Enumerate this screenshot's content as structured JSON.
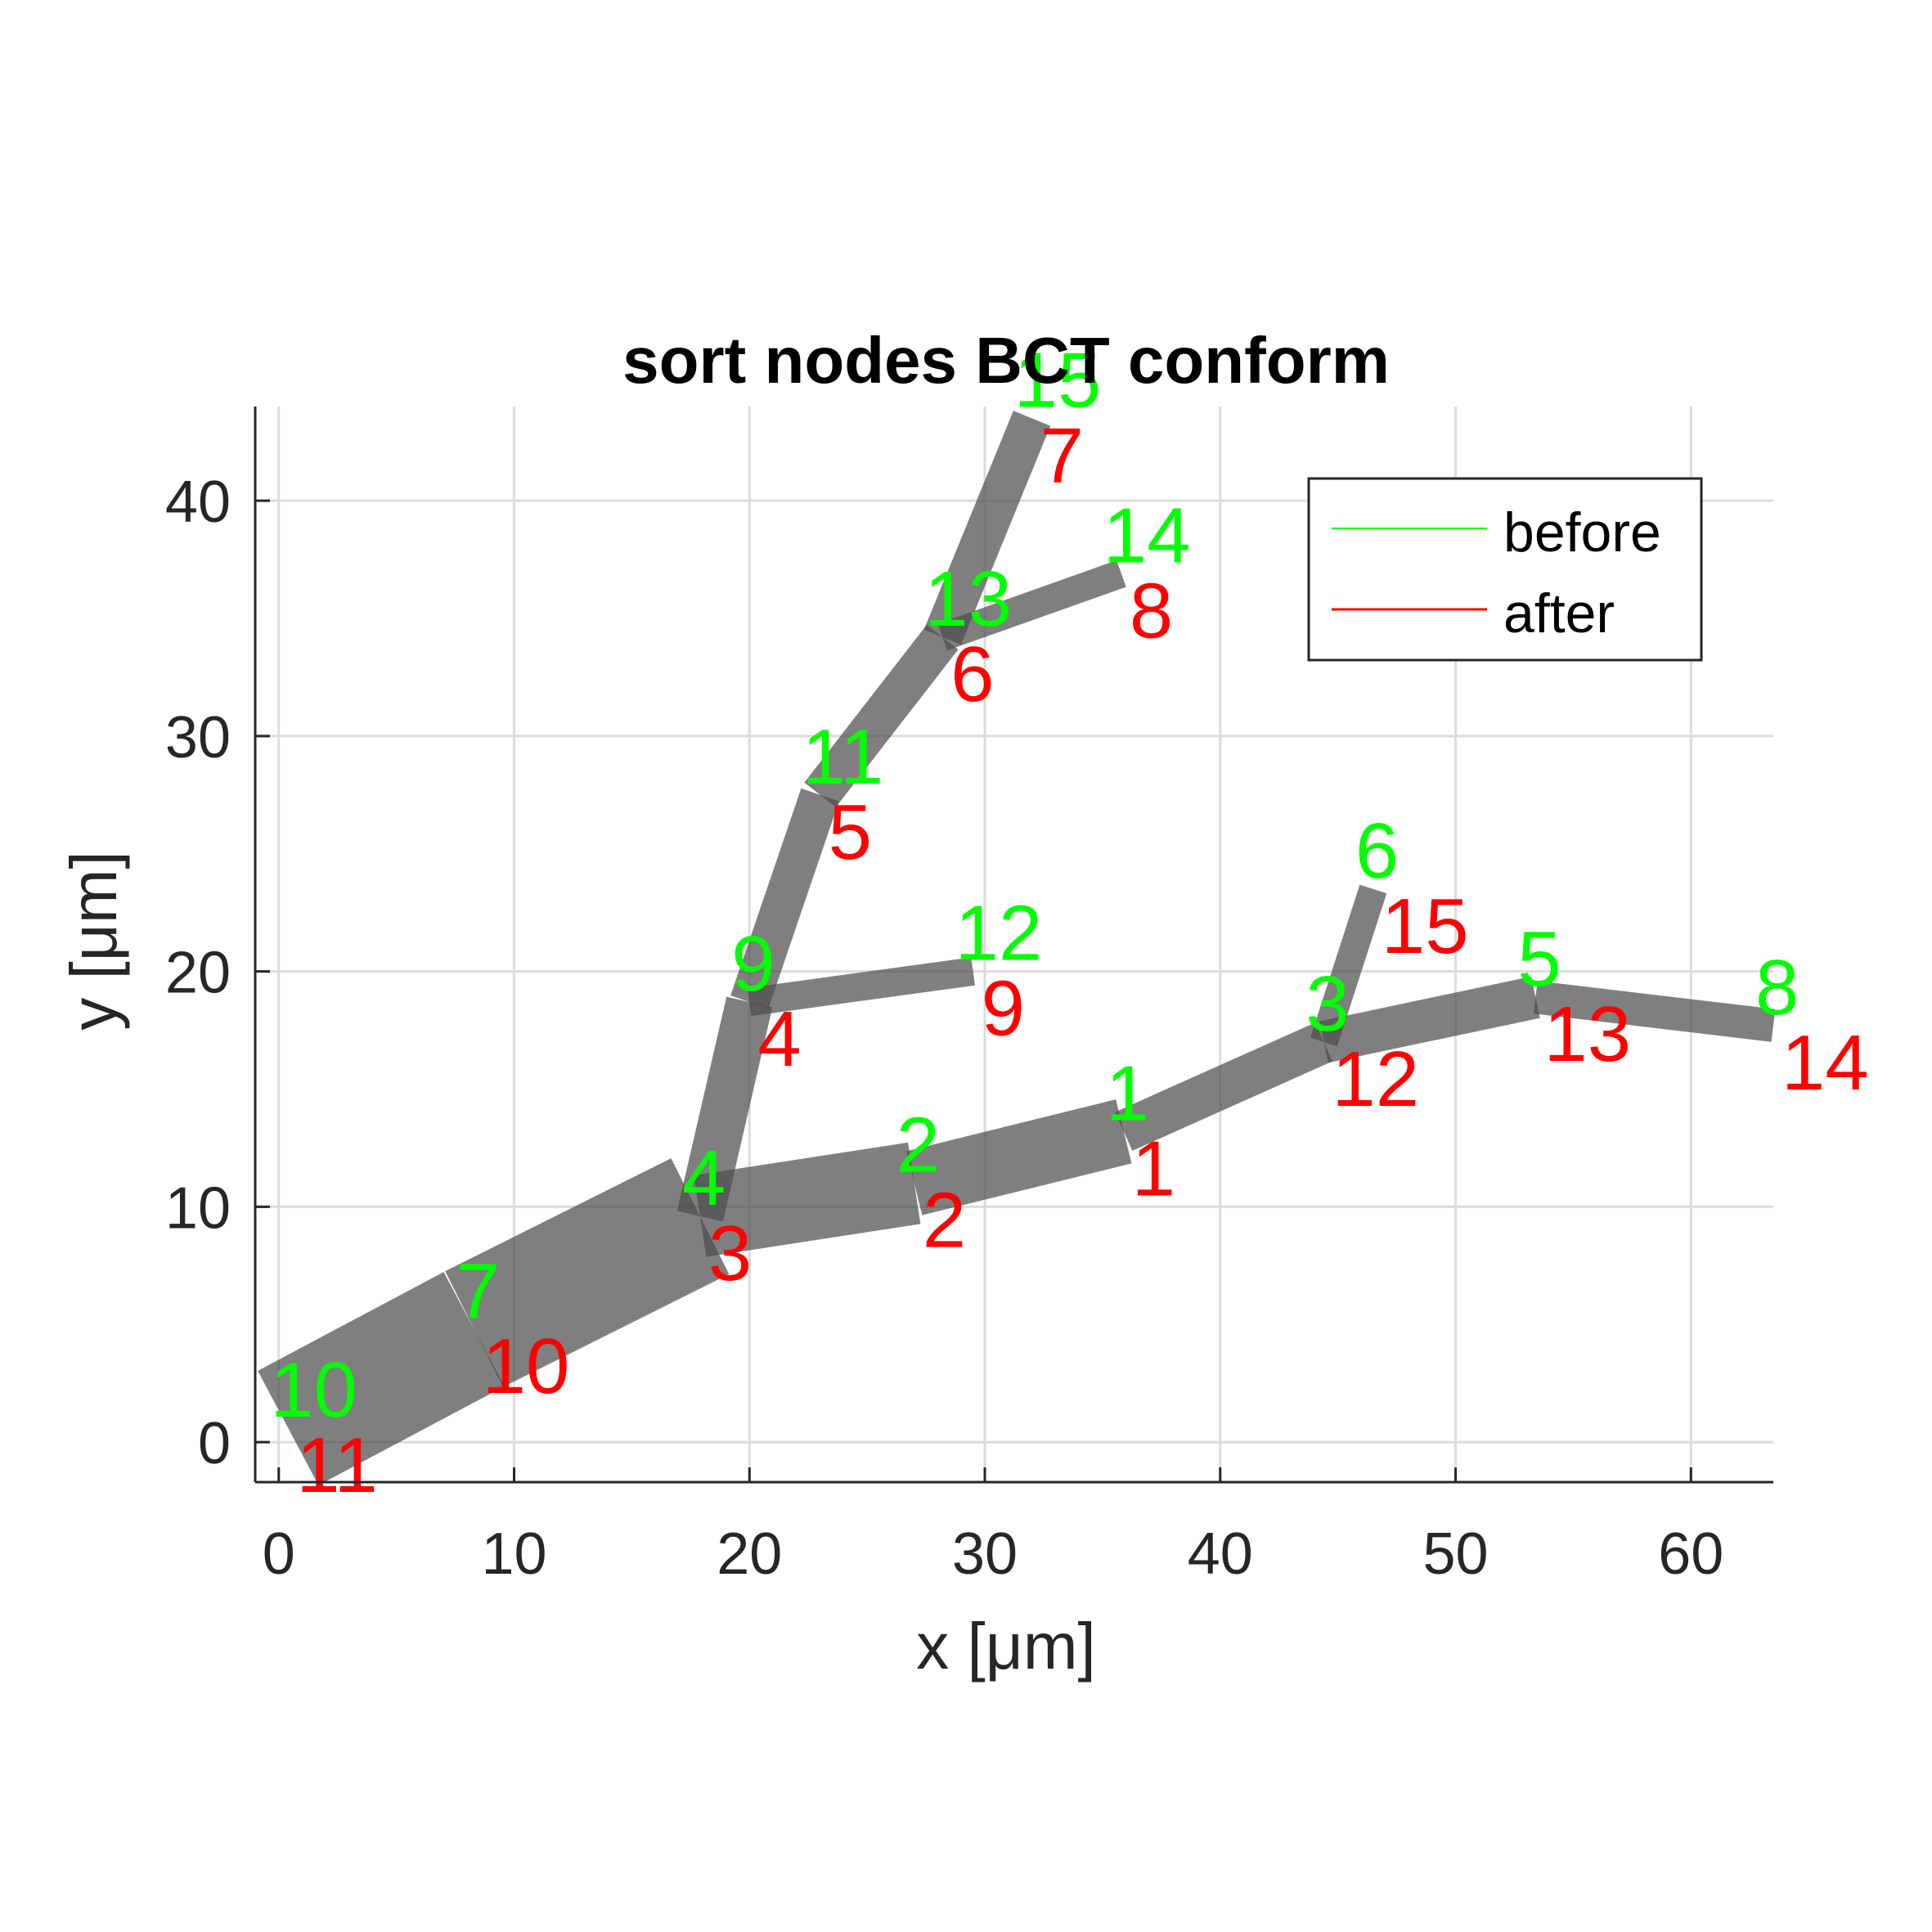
{
  "chart_data": {
    "type": "line",
    "title": "sort nodes BCT conform",
    "xlabel": "x [μm]",
    "ylabel": "y [μm]",
    "xlim": [
      -1,
      63.5
    ],
    "ylim": [
      -1.7,
      44
    ],
    "xticks": [
      0,
      10,
      20,
      30,
      40,
      50,
      60
    ],
    "yticks": [
      0,
      10,
      20,
      30,
      40
    ],
    "grid": true,
    "legend_position": "top-right",
    "series": [
      {
        "name": "before",
        "color": "#00ff00"
      },
      {
        "name": "after",
        "color": "#ff0000"
      }
    ],
    "nodes": [
      {
        "x": 35.9,
        "y": 13.2,
        "before": "1",
        "after": "1"
      },
      {
        "x": 27.0,
        "y": 11.0,
        "before": "2",
        "after": "2"
      },
      {
        "x": 44.4,
        "y": 17.0,
        "before": "3",
        "after": "12"
      },
      {
        "x": 17.9,
        "y": 9.6,
        "before": "4",
        "after": "3"
      },
      {
        "x": 53.4,
        "y": 18.9,
        "before": "5",
        "after": "13"
      },
      {
        "x": 46.5,
        "y": 23.5,
        "before": "6",
        "after": "15"
      },
      {
        "x": 8.3,
        "y": 4.8,
        "before": "7",
        "after": "10"
      },
      {
        "x": 63.5,
        "y": 17.7,
        "before": "8",
        "after": "14"
      },
      {
        "x": 20.0,
        "y": 18.7,
        "before": "9",
        "after": "4"
      },
      {
        "x": 0.4,
        "y": 0.6,
        "before": "10",
        "after": "11"
      },
      {
        "x": 23.0,
        "y": 27.5,
        "before": "11",
        "after": "5"
      },
      {
        "x": 29.5,
        "y": 20.0,
        "before": "12",
        "after": "9"
      },
      {
        "x": 28.2,
        "y": 34.2,
        "before": "13",
        "after": "6"
      },
      {
        "x": 35.8,
        "y": 36.9,
        "before": "14",
        "after": "8"
      },
      {
        "x": 32.0,
        "y": 43.5,
        "before": "15",
        "after": "7"
      }
    ],
    "segments": [
      {
        "from": 10,
        "to": 7,
        "width": 5.5
      },
      {
        "from": 7,
        "to": 4,
        "width": 5.5
      },
      {
        "from": 4,
        "to": 2,
        "width": 3.5
      },
      {
        "from": 2,
        "to": 1,
        "width": 2.8
      },
      {
        "from": 1,
        "to": 3,
        "width": 1.8
      },
      {
        "from": 3,
        "to": 5,
        "width": 1.8
      },
      {
        "from": 5,
        "to": 8,
        "width": 1.4
      },
      {
        "from": 3,
        "to": 6,
        "width": 1.2
      },
      {
        "from": 4,
        "to": 9,
        "width": 2.0
      },
      {
        "from": 9,
        "to": 12,
        "width": 1.2
      },
      {
        "from": 9,
        "to": 11,
        "width": 1.7
      },
      {
        "from": 11,
        "to": 13,
        "width": 1.7
      },
      {
        "from": 13,
        "to": 14,
        "width": 1.2
      },
      {
        "from": 13,
        "to": 15,
        "width": 1.7
      }
    ]
  }
}
